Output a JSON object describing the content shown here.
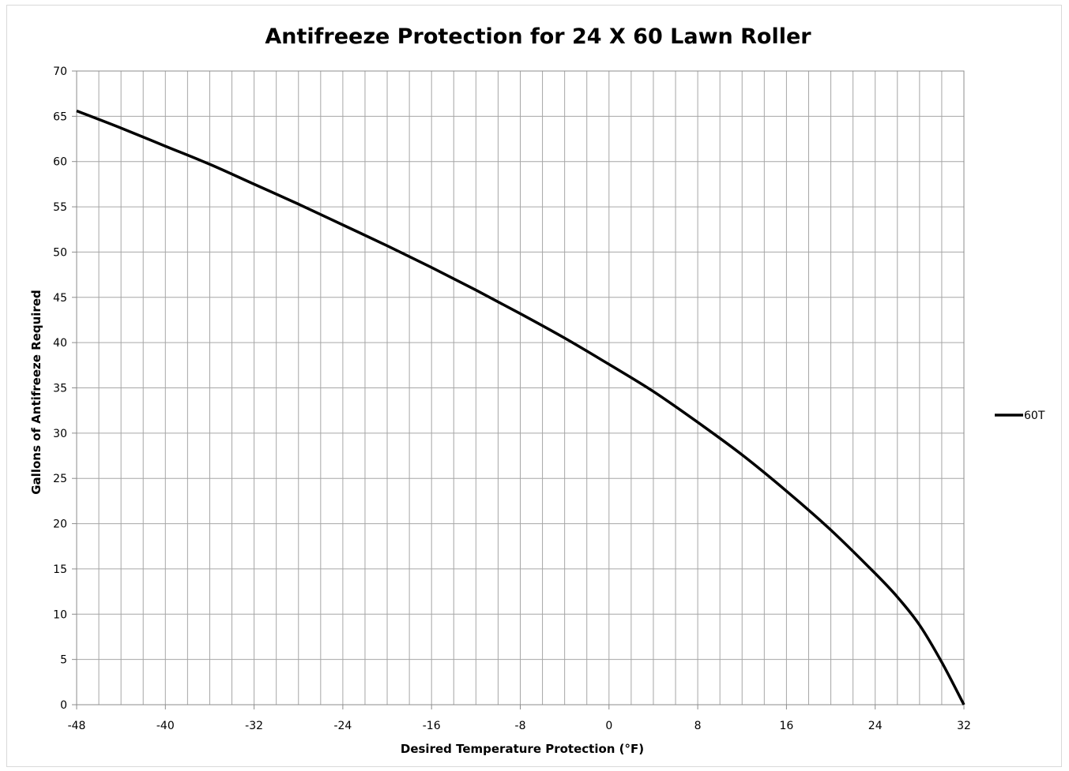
{
  "chart_data": {
    "type": "line",
    "title": "Antifreeze Protection for 24 X 60 Lawn Roller",
    "xlabel": "Desired Temperature Protection (°F)",
    "ylabel": "Gallons of Antifreeze Required",
    "xlim": [
      -48,
      32
    ],
    "ylim": [
      0,
      70
    ],
    "x_ticks": [
      -48,
      -40,
      -32,
      -24,
      -16,
      -8,
      0,
      8,
      16,
      24,
      32
    ],
    "y_ticks": [
      0,
      5,
      10,
      15,
      20,
      25,
      30,
      35,
      40,
      45,
      50,
      55,
      60,
      65,
      70
    ],
    "x_minor_step": 2,
    "grid": true,
    "legend_position": "right",
    "series": [
      {
        "name": "60T",
        "color": "#000000",
        "x": [
          -48,
          -44,
          -40,
          -36,
          -32,
          -28,
          -24,
          -20,
          -16,
          -12,
          -8,
          -4,
          0,
          4,
          8,
          12,
          16,
          20,
          24,
          26,
          28,
          30,
          32
        ],
        "y": [
          65.6,
          63.7,
          61.7,
          59.7,
          57.5,
          55.3,
          53.0,
          50.7,
          48.3,
          45.8,
          43.2,
          40.5,
          37.6,
          34.6,
          31.2,
          27.6,
          23.6,
          19.3,
          14.5,
          11.9,
          8.8,
          4.7,
          0
        ]
      }
    ]
  }
}
